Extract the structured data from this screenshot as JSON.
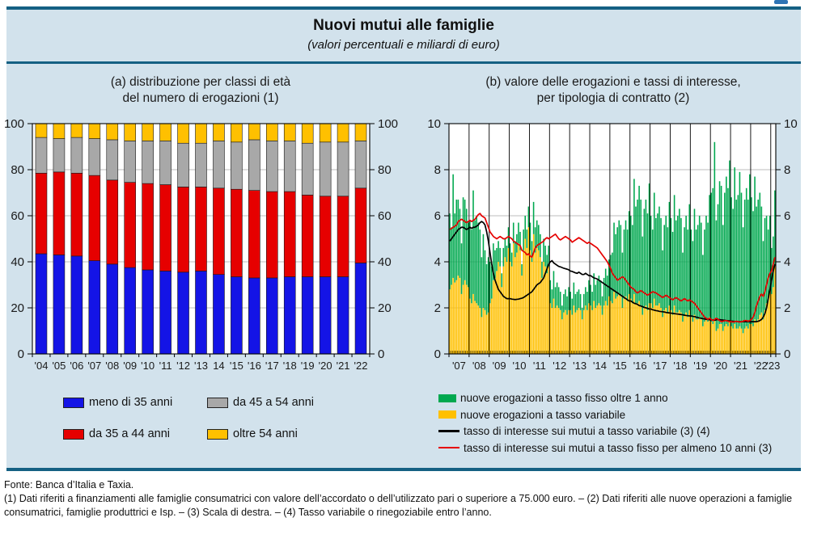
{
  "header": {
    "title": "Nuovi mutui alle famiglie",
    "subtitle": "(valori percentuali e miliardi di euro)"
  },
  "theme": {
    "band_bg": "#D2E2EC",
    "rule_blue": "#156083",
    "grid_gray": "#BEBEBE"
  },
  "panel_a": {
    "title_line1": "(a) distribuzione per classi di età",
    "title_line2": "del numero di erogazioni (1)",
    "legend": [
      {
        "label": "meno di 35 anni",
        "color": "#1414E6",
        "type": "box"
      },
      {
        "label": "da 45 a 54 anni",
        "color": "#A8A8A8",
        "type": "box"
      },
      {
        "label": "da 35 a 44 anni",
        "color": "#E60000",
        "type": "box"
      },
      {
        "label": "oltre 54 anni",
        "color": "#FFC000",
        "type": "box"
      }
    ]
  },
  "panel_b": {
    "title_line1": "(b) valore delle erogazioni e tassi di interesse,",
    "title_line2": "per tipologia di contratto (2)",
    "legend": [
      {
        "label": "nuove erogazioni a tasso fisso oltre 1 anno",
        "color": "#00A84F",
        "type": "box"
      },
      {
        "label": "nuove erogazioni a tasso variabile",
        "color": "#FFC000",
        "type": "box"
      },
      {
        "label": "tasso di interesse sui mutui a tasso variabile (3) (4)",
        "color": "#000000",
        "type": "line"
      },
      {
        "label": "tasso di interesse sui mutui a tasso fisso per almeno 10 anni (3)",
        "color": "#E60000",
        "type": "line"
      }
    ]
  },
  "chart_data": [
    {
      "type": "bar",
      "stacked": true,
      "title": "(a) distribuzione per classi di età del numero di erogazioni (1)",
      "categories": [
        "'04",
        "'05",
        "'06",
        "'07",
        "'08",
        "'09",
        "'10",
        "'11",
        "'12",
        "'13",
        "14",
        "'15",
        "'16",
        "'17",
        "'18",
        "'19",
        "'20",
        "'21",
        "'22"
      ],
      "series": [
        {
          "name": "meno di 35 anni",
          "color": "#1414E6",
          "values": [
            43.5,
            43,
            42.5,
            40.5,
            39,
            37.5,
            36.5,
            36,
            35.5,
            36,
            34.5,
            33.5,
            33,
            33,
            33.5,
            33.5,
            33.5,
            33.5,
            39.5
          ]
        },
        {
          "name": "da 35 a 44 anni",
          "color": "#E60000",
          "values": [
            35,
            36,
            36,
            37,
            36.5,
            37,
            37.5,
            37.5,
            37,
            36.5,
            37.5,
            38,
            38,
            37.5,
            37,
            35.5,
            35,
            35,
            32.5
          ]
        },
        {
          "name": "da 45 a 54 anni",
          "color": "#A8A8A8",
          "values": [
            15.5,
            14.5,
            15.5,
            16,
            17.5,
            18,
            18.5,
            19,
            19,
            19,
            20.5,
            20.5,
            22,
            22,
            22,
            22.5,
            23.5,
            23.5,
            20.5
          ]
        },
        {
          "name": "oltre 54 anni",
          "color": "#FFC000",
          "values": [
            6,
            6.5,
            6,
            6.5,
            7,
            7.5,
            7.5,
            7.5,
            8.5,
            8.5,
            7.5,
            8,
            7,
            7.5,
            7.5,
            8.5,
            8,
            8,
            7.5
          ]
        }
      ],
      "ylim": [
        0,
        100
      ],
      "yticks": [
        0,
        20,
        40,
        60,
        80,
        100
      ],
      "grid": "horizontal",
      "unit": "valori percentuali"
    },
    {
      "type": "mixed",
      "title": "(b) valore delle erogazioni e tassi di interesse, per tipologia di contratto (2)",
      "frequency": "monthly",
      "x_start": "2007-01",
      "x_end": "2023-03",
      "x_labels": [
        "'07",
        "'08",
        "'09",
        "'10",
        "'11",
        "'12",
        "'13",
        "'14",
        "'15",
        "'16",
        "'17",
        "'18",
        "'19",
        "'20",
        "'21",
        "'22",
        "'23"
      ],
      "ylim": [
        0,
        10
      ],
      "yticks": [
        0,
        2,
        4,
        6,
        8,
        10
      ],
      "grid": "horizontal",
      "bars": {
        "stacked": true,
        "unit": "miliardi di euro",
        "variabile": {
          "name": "nuove erogazioni a tasso variabile",
          "color": "#FFC000",
          "values": [
            2.8,
            3.0,
            3.3,
            3.1,
            3.2,
            3.4,
            3.3,
            2.6,
            3.0,
            3.2,
            3.0,
            2.9,
            2.4,
            2.2,
            2.6,
            2.3,
            2.2,
            2.1,
            2.0,
            1.6,
            2.0,
            1.9,
            1.7,
            1.8,
            2.2,
            2.4,
            3.2,
            3.3,
            3.6,
            4.0,
            3.8,
            2.9,
            3.8,
            4.2,
            4.0,
            4.6,
            4.0,
            3.8,
            4.8,
            4.2,
            4.4,
            4.8,
            4.5,
            3.4,
            4.5,
            5.0,
            4.6,
            5.5,
            4.5,
            4.0,
            5.2,
            4.4,
            4.6,
            4.5,
            4.2,
            3.3,
            4.0,
            3.8,
            3.5,
            3.8,
            2.2,
            2.0,
            2.4,
            2.0,
            2.1,
            2.0,
            1.9,
            1.5,
            1.8,
            1.9,
            1.7,
            1.9,
            1.9,
            1.7,
            2.1,
            1.8,
            1.9,
            2.0,
            1.9,
            1.5,
            1.9,
            2.1,
            1.9,
            2.2,
            2.1,
            1.9,
            2.3,
            2.0,
            2.1,
            2.2,
            2.1,
            1.7,
            2.1,
            2.3,
            2.1,
            2.5,
            2.3,
            2.2,
            2.7,
            2.4,
            2.5,
            2.6,
            2.5,
            2.0,
            2.4,
            2.5,
            2.3,
            2.6,
            2.4,
            2.2,
            2.6,
            2.2,
            2.2,
            2.3,
            2.1,
            1.7,
            2.0,
            2.1,
            1.9,
            2.2,
            2.2,
            2.0,
            2.4,
            2.1,
            2.1,
            2.2,
            2.0,
            1.6,
            1.9,
            2.0,
            1.8,
            2.1,
            1.9,
            1.7,
            2.1,
            1.8,
            1.8,
            1.9,
            1.8,
            1.4,
            1.7,
            1.8,
            1.6,
            1.9,
            1.6,
            1.4,
            1.7,
            1.5,
            1.5,
            1.6,
            1.5,
            1.2,
            1.4,
            1.5,
            1.4,
            1.6,
            1.4,
            1.3,
            1.5,
            1.0,
            1.1,
            1.3,
            1.3,
            1.0,
            1.2,
            1.3,
            1.2,
            1.4,
            1.2,
            1.1,
            1.3,
            1.1,
            1.1,
            1.2,
            1.1,
            0.9,
            1.1,
            1.2,
            1.1,
            1.3,
            1.3,
            1.2,
            1.5,
            1.4,
            1.5,
            1.7,
            1.8,
            1.5,
            1.9,
            2.2,
            2.4,
            2.8,
            2.6,
            2.9,
            3.9
          ]
        },
        "fisso": {
          "name": "nuove erogazioni a tasso fisso oltre 1 anno",
          "color": "#00A84F",
          "values": [
            3.3,
            2.5,
            4.5,
            3.0,
            3.5,
            3.3,
            3.0,
            2.2,
            3.8,
            3.5,
            3.3,
            2.8,
            3.4,
            3.2,
            4.5,
            3.5,
            3.8,
            3.6,
            3.4,
            2.6,
            3.2,
            2.6,
            2.2,
            2.4,
            1.8,
            1.4,
            1.6,
            1.2,
            1.0,
            0.9,
            0.8,
            0.6,
            0.8,
            0.8,
            0.7,
            0.9,
            0.8,
            0.6,
            0.9,
            0.7,
            0.8,
            0.9,
            0.8,
            0.5,
            0.9,
            1.0,
            0.8,
            0.9,
            1.2,
            0.9,
            1.4,
            1.1,
            1.2,
            1.1,
            1.0,
            0.7,
            1.0,
            0.9,
            0.8,
            0.9,
            1.0,
            0.8,
            1.2,
            0.9,
            1.0,
            0.9,
            0.8,
            0.6,
            0.8,
            0.9,
            0.8,
            1.0,
            0.8,
            0.7,
            1.0,
            0.8,
            0.8,
            0.8,
            0.7,
            0.5,
            0.7,
            0.8,
            0.8,
            1.0,
            0.9,
            0.8,
            1.2,
            1.0,
            1.1,
            1.2,
            1.1,
            0.8,
            1.2,
            1.4,
            1.3,
            1.6,
            2.0,
            2.2,
            3.0,
            2.8,
            3.0,
            3.2,
            3.1,
            2.4,
            3.0,
            3.3,
            3.1,
            3.6,
            3.6,
            3.4,
            5.0,
            4.2,
            4.5,
            5.0,
            4.6,
            3.4,
            4.3,
            4.6,
            4.2,
            5.2,
            3.8,
            3.4,
            4.6,
            3.8,
            4.0,
            4.2,
            3.9,
            2.9,
            3.7,
            4.0,
            3.7,
            4.5,
            4.0,
            3.6,
            4.8,
            4.0,
            4.2,
            4.4,
            4.1,
            3.0,
            3.8,
            4.2,
            3.8,
            4.6,
            3.8,
            3.5,
            4.6,
            3.9,
            4.1,
            4.4,
            4.2,
            3.1,
            4.0,
            4.5,
            4.3,
            5.3,
            5.6,
            5.9,
            7.7,
            4.8,
            5.4,
            6.2,
            6.0,
            4.6,
            5.8,
            6.4,
            6.0,
            7.0,
            5.6,
            5.2,
            6.8,
            5.6,
            5.8,
            6.7,
            5.9,
            4.6,
            5.6,
            6.0,
            5.6,
            6.5,
            5.5,
            5.0,
            6.2,
            5.0,
            5.2,
            5.3,
            4.6,
            3.4,
            4.0,
            3.8,
            3.0,
            3.2,
            2.0,
            2.2,
            3.2
          ]
        }
      },
      "lines": {
        "variabile": {
          "name": "tasso di interesse sui mutui a tasso variabile (3) (4)",
          "color": "#000000",
          "values": [
            4.9,
            5.0,
            5.1,
            5.2,
            5.3,
            5.4,
            5.45,
            5.5,
            5.5,
            5.45,
            5.4,
            5.45,
            5.5,
            5.45,
            5.5,
            5.5,
            5.55,
            5.6,
            5.7,
            5.75,
            5.7,
            5.6,
            5.3,
            4.9,
            4.4,
            3.9,
            3.5,
            3.2,
            3.0,
            2.8,
            2.7,
            2.6,
            2.5,
            2.45,
            2.4,
            2.4,
            2.4,
            2.38,
            2.37,
            2.36,
            2.37,
            2.38,
            2.4,
            2.42,
            2.45,
            2.5,
            2.55,
            2.6,
            2.65,
            2.7,
            2.8,
            2.9,
            3.0,
            3.05,
            3.1,
            3.2,
            3.3,
            3.5,
            3.7,
            3.9,
            4.0,
            4.05,
            3.95,
            3.9,
            3.85,
            3.8,
            3.78,
            3.75,
            3.72,
            3.7,
            3.68,
            3.65,
            3.6,
            3.58,
            3.55,
            3.52,
            3.5,
            3.55,
            3.5,
            3.45,
            3.45,
            3.5,
            3.45,
            3.4,
            3.4,
            3.35,
            3.3,
            3.28,
            3.25,
            3.2,
            3.15,
            3.1,
            3.05,
            3.0,
            2.95,
            2.9,
            2.85,
            2.8,
            2.75,
            2.7,
            2.65,
            2.6,
            2.55,
            2.5,
            2.45,
            2.4,
            2.35,
            2.3,
            2.3,
            2.25,
            2.2,
            2.18,
            2.15,
            2.1,
            2.08,
            2.05,
            2.02,
            2.0,
            1.98,
            1.95,
            1.95,
            1.92,
            1.9,
            1.88,
            1.87,
            1.85,
            1.84,
            1.83,
            1.82,
            1.8,
            1.79,
            1.78,
            1.77,
            1.76,
            1.75,
            1.74,
            1.73,
            1.72,
            1.71,
            1.7,
            1.68,
            1.67,
            1.66,
            1.65,
            1.65,
            1.63,
            1.62,
            1.6,
            1.58,
            1.56,
            1.55,
            1.53,
            1.52,
            1.5,
            1.5,
            1.48,
            1.48,
            1.47,
            1.46,
            1.48,
            1.5,
            1.49,
            1.48,
            1.47,
            1.46,
            1.45,
            1.44,
            1.43,
            1.42,
            1.42,
            1.41,
            1.41,
            1.4,
            1.4,
            1.4,
            1.4,
            1.4,
            1.4,
            1.4,
            1.4,
            1.4,
            1.4,
            1.4,
            1.4,
            1.42,
            1.45,
            1.5,
            1.6,
            1.75,
            2.0,
            2.4,
            2.8,
            3.2,
            3.6,
            3.9
          ]
        },
        "fisso": {
          "name": "tasso di interesse sui mutui a tasso fisso per almeno 10 anni (3)",
          "color": "#E60000",
          "values": [
            5.4,
            5.45,
            5.5,
            5.55,
            5.6,
            5.75,
            5.8,
            5.85,
            5.8,
            5.75,
            5.7,
            5.75,
            5.8,
            5.75,
            5.8,
            5.85,
            5.95,
            6.05,
            6.1,
            6.0,
            5.95,
            5.9,
            5.7,
            5.5,
            5.3,
            5.2,
            5.1,
            5.05,
            5.0,
            5.05,
            5.1,
            5.05,
            5.0,
            5.0,
            5.05,
            5.1,
            5.05,
            5.0,
            4.9,
            4.85,
            4.8,
            4.75,
            4.7,
            4.5,
            4.45,
            4.4,
            4.3,
            4.35,
            4.25,
            4.2,
            4.4,
            4.6,
            4.7,
            4.75,
            4.8,
            4.85,
            4.9,
            5.0,
            5.05,
            5.0,
            5.05,
            5.1,
            5.15,
            5.2,
            5.1,
            5.0,
            4.95,
            5.0,
            5.05,
            5.1,
            5.05,
            5.0,
            4.95,
            4.85,
            4.9,
            4.95,
            5.0,
            5.05,
            5.0,
            4.95,
            4.9,
            4.85,
            4.8,
            4.85,
            4.8,
            4.75,
            4.7,
            4.65,
            4.6,
            4.5,
            4.4,
            4.3,
            4.2,
            4.1,
            4.0,
            3.85,
            3.7,
            3.5,
            3.4,
            3.3,
            3.2,
            3.25,
            3.3,
            3.35,
            3.3,
            3.2,
            3.1,
            3.0,
            2.9,
            2.85,
            2.8,
            2.7,
            2.65,
            2.7,
            2.75,
            2.7,
            2.65,
            2.6,
            2.55,
            2.6,
            2.65,
            2.7,
            2.68,
            2.65,
            2.6,
            2.55,
            2.5,
            2.45,
            2.5,
            2.55,
            2.5,
            2.45,
            2.4,
            2.35,
            2.4,
            2.45,
            2.4,
            2.35,
            2.3,
            2.35,
            2.4,
            2.35,
            2.3,
            2.35,
            2.3,
            2.25,
            2.2,
            2.1,
            2.0,
            1.9,
            1.8,
            1.7,
            1.6,
            1.55,
            1.5,
            1.55,
            1.5,
            1.45,
            1.5,
            1.55,
            1.5,
            1.45,
            1.4,
            1.42,
            1.44,
            1.45,
            1.42,
            1.4,
            1.4,
            1.38,
            1.4,
            1.42,
            1.4,
            1.38,
            1.4,
            1.42,
            1.45,
            1.45,
            1.42,
            1.45,
            1.5,
            1.6,
            1.8,
            2.1,
            2.3,
            2.5,
            2.6,
            2.5,
            2.7,
            3.0,
            3.3,
            3.5,
            3.6,
            3.9,
            4.2
          ]
        }
      }
    }
  ],
  "footer": {
    "fonte": "Fonte: Banca d’Italia e Taxia.",
    "note": "(1) Dati riferiti a finanziamenti alle famiglie consumatrici con valore dell’accordato o dell’utilizzato pari o superiore a 75.000 euro. – (2) Dati riferiti alle nuove operazioni a famiglie consumatrici, famiglie produttrici e Isp. – (3) Scala di destra. – (4) Tasso variabile o rinegoziabile entro l’anno."
  }
}
